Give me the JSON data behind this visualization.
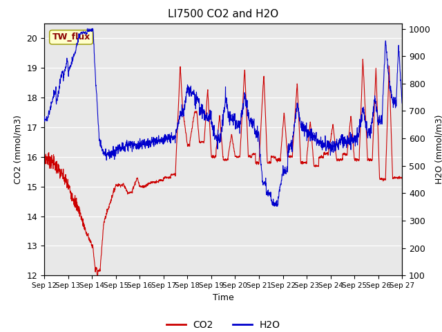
{
  "title": "LI7500 CO2 and H2O",
  "xlabel": "Time",
  "ylabel_left": "CO2 (mmol/m3)",
  "ylabel_right": "H2O (mmol/m3)",
  "annotation_text": "TW_flux",
  "ylim_left": [
    12.0,
    20.5
  ],
  "ylim_right": [
    100,
    1020
  ],
  "yticks_left": [
    12.0,
    13.0,
    14.0,
    15.0,
    16.0,
    17.0,
    18.0,
    19.0,
    20.0
  ],
  "yticks_right": [
    100,
    200,
    300,
    400,
    500,
    600,
    700,
    800,
    900,
    1000
  ],
  "bg_color": "#e8e8e8",
  "co2_color": "#cc0000",
  "h2o_color": "#0000cc",
  "line_width": 0.8,
  "xtick_labels": [
    "Sep 12",
    "Sep 13",
    "Sep 14",
    "Sep 15",
    "Sep 16",
    "Sep 17",
    "Sep 18",
    "Sep 19",
    "Sep 20",
    "Sep 21",
    "Sep 22",
    "Sep 23",
    "Sep 24",
    "Sep 25",
    "Sep 26",
    "Sep 27"
  ]
}
